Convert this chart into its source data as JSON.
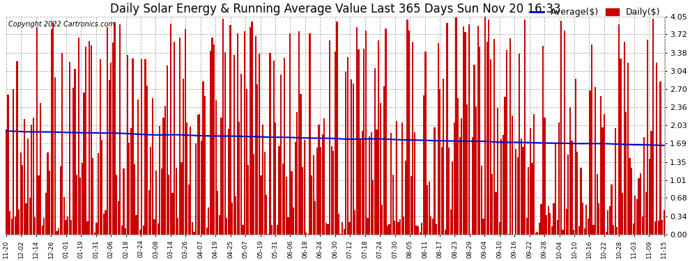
{
  "title": "Daily Solar Energy & Running Average Value Last 365 Days Sun Nov 20 16:33",
  "copyright_text": "Copyright 2022 Cartronics.com",
  "legend_avg": "Average($)",
  "legend_daily": "Daily($)",
  "avg_color": "#0000cc",
  "daily_color": "#cc0000",
  "ymin": 0.0,
  "ymax": 4.05,
  "yticks": [
    0.0,
    0.34,
    0.68,
    1.01,
    1.35,
    1.69,
    2.03,
    2.36,
    2.7,
    3.04,
    3.38,
    3.72,
    4.05
  ],
  "background_color": "#ffffff",
  "grid_color": "#aaaaaa",
  "title_fontsize": 12,
  "n_bars": 365,
  "seed": 42,
  "x_labels": [
    "11-20",
    "12-02",
    "12-14",
    "12-26",
    "01-01",
    "01-19",
    "01-31",
    "02-06",
    "02-18",
    "02-24",
    "03-08",
    "03-14",
    "03-26",
    "04-07",
    "04-19",
    "04-25",
    "05-07",
    "05-19",
    "05-31",
    "06-06",
    "06-18",
    "06-24",
    "06-30",
    "07-12",
    "07-18",
    "07-24",
    "07-30",
    "08-05",
    "08-11",
    "08-17",
    "08-23",
    "08-29",
    "09-04",
    "09-10",
    "09-16",
    "09-22",
    "09-28",
    "10-04",
    "10-10",
    "10-16",
    "10-22",
    "10-28",
    "11-03",
    "11-09",
    "11-15"
  ]
}
